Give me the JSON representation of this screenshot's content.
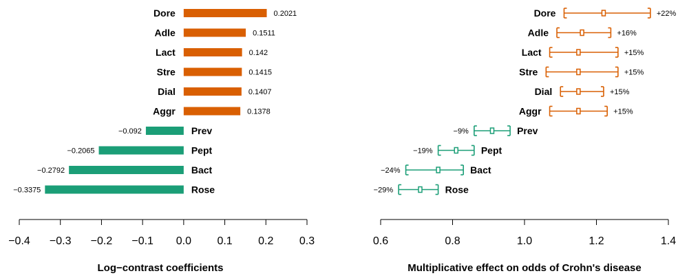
{
  "colors": {
    "positive": "#d95f02",
    "negative": "#1b9e77",
    "axis": "#000000"
  },
  "chart_data": [
    {
      "type": "bar",
      "orientation": "horizontal",
      "title": "",
      "xlabel": "Log−contrast coefficients",
      "ylabel": "",
      "xlim": [
        -0.4,
        0.3
      ],
      "xticks": [
        -0.4,
        -0.3,
        -0.2,
        -0.1,
        0.0,
        0.1,
        0.2,
        0.3
      ],
      "xtick_labels": [
        "−0.4",
        "−0.3",
        "−0.2",
        "−0.1",
        "0.0",
        "0.1",
        "0.2",
        "0.3"
      ],
      "grid": false,
      "categories": [
        "Dore",
        "Adle",
        "Lact",
        "Stre",
        "Dial",
        "Aggr",
        "Prev",
        "Pept",
        "Bact",
        "Rose"
      ],
      "values": [
        0.2021,
        0.1511,
        0.142,
        0.1415,
        0.1407,
        0.1378,
        -0.092,
        -0.2065,
        -0.2792,
        -0.3375
      ],
      "value_labels": [
        "0.2021",
        "0.1511",
        "0.142",
        "0.1415",
        "0.1407",
        "0.1378",
        "−0.092",
        "−0.2065",
        "−0.2792",
        "−0.3375"
      ]
    },
    {
      "type": "scatter",
      "subtype": "interval",
      "title": "",
      "xlabel": "Multiplicative effect on odds of Crohn's disease",
      "ylabel": "",
      "xlim": [
        0.6,
        1.4
      ],
      "xticks": [
        0.6,
        0.8,
        1.0,
        1.2,
        1.4
      ],
      "xtick_labels": [
        "0.6",
        "0.8",
        "1.0",
        "1.2",
        "1.4"
      ],
      "grid": false,
      "categories": [
        "Dore",
        "Adle",
        "Lact",
        "Stre",
        "Dial",
        "Aggr",
        "Prev",
        "Pept",
        "Bact",
        "Rose"
      ],
      "estimates": [
        1.22,
        1.16,
        1.15,
        1.15,
        1.15,
        1.15,
        0.91,
        0.81,
        0.76,
        0.71
      ],
      "lower": [
        1.11,
        1.09,
        1.07,
        1.06,
        1.1,
        1.07,
        0.86,
        0.76,
        0.67,
        0.65
      ],
      "upper": [
        1.35,
        1.24,
        1.26,
        1.26,
        1.22,
        1.23,
        0.96,
        0.86,
        0.83,
        0.76
      ],
      "value_labels": [
        "+22%",
        "+16%",
        "+15%",
        "+15%",
        "+15%",
        "+15%",
        "−9%",
        "−19%",
        "−24%",
        "−29%"
      ]
    }
  ]
}
